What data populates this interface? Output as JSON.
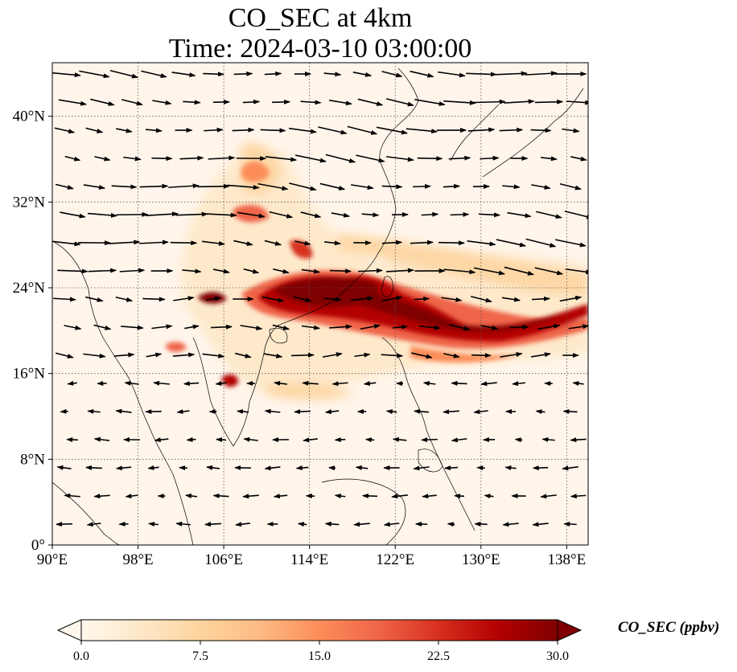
{
  "title": {
    "line1": "CO_SEC at 4km",
    "line2": "Time: 2024-03-10 03:00:00"
  },
  "map": {
    "lon_range": [
      90,
      140
    ],
    "lat_range": [
      0,
      45
    ],
    "x_ticks": [
      "90°E",
      "98°E",
      "106°E",
      "114°E",
      "122°E",
      "130°E",
      "138°E"
    ],
    "x_tick_values": [
      90,
      98,
      106,
      114,
      122,
      130,
      138
    ],
    "y_ticks": [
      "0°",
      "8°N",
      "16°N",
      "24°N",
      "32°N",
      "40°N"
    ],
    "y_tick_values": [
      0,
      8,
      16,
      24,
      32,
      40
    ],
    "gridlines": "dotted",
    "background_color": "#fff5eb",
    "coastline_color": "#000000",
    "wind_vector_color": "#000000"
  },
  "colorbar": {
    "label": "CO_SEC (ppbv)",
    "ticks": [
      "0.0",
      "7.5",
      "15.0",
      "22.5",
      "30.0"
    ],
    "tick_values": [
      0,
      7.5,
      15,
      22.5,
      30
    ],
    "range": [
      0,
      30
    ],
    "extend": "both",
    "colormap": "OrRd",
    "colors": [
      "#fff7ec",
      "#fee8c8",
      "#fdd49e",
      "#fdbb84",
      "#fc8d59",
      "#ef6548",
      "#d7301f",
      "#b30000",
      "#7f0000"
    ]
  }
}
